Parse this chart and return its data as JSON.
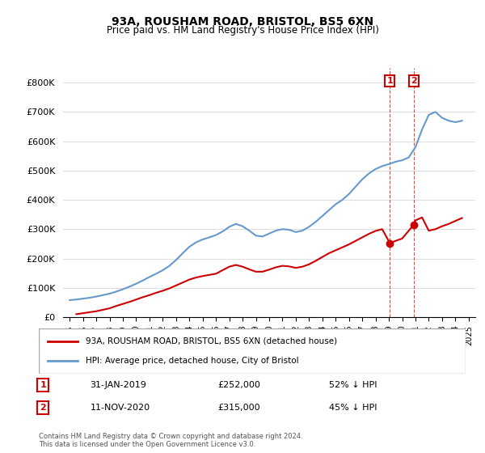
{
  "title1": "93A, ROUSHAM ROAD, BRISTOL, BS5 6XN",
  "title2": "Price paid vs. HM Land Registry's House Price Index (HPI)",
  "legend_line1": "93A, ROUSHAM ROAD, BRISTOL, BS5 6XN (detached house)",
  "legend_line2": "HPI: Average price, detached house, City of Bristol",
  "annotation1_label": "1",
  "annotation1_date": "31-JAN-2019",
  "annotation1_price": "£252,000",
  "annotation1_hpi": "52% ↓ HPI",
  "annotation1_year": 2019.08,
  "annotation1_value": 252000,
  "annotation2_label": "2",
  "annotation2_date": "11-NOV-2020",
  "annotation2_price": "£315,000",
  "annotation2_hpi": "45% ↓ HPI",
  "annotation2_year": 2020.87,
  "annotation2_value": 315000,
  "footnote": "Contains HM Land Registry data © Crown copyright and database right 2024.\nThis data is licensed under the Open Government Licence v3.0.",
  "ylabel_color": "#222222",
  "hpi_color": "#6699cc",
  "price_color": "#cc0000",
  "vline_color": "#cc0000",
  "annot_box_color": "#cc0000",
  "ylim_max": 850000,
  "ylim_min": 0,
  "hpi_years": [
    1995,
    1995.5,
    1996,
    1996.5,
    1997,
    1997.5,
    1998,
    1998.5,
    1999,
    1999.5,
    2000,
    2000.5,
    2001,
    2001.5,
    2002,
    2002.5,
    2003,
    2003.5,
    2004,
    2004.5,
    2005,
    2005.5,
    2006,
    2006.5,
    2007,
    2007.5,
    2008,
    2008.5,
    2009,
    2009.5,
    2010,
    2010.5,
    2011,
    2011.5,
    2012,
    2012.5,
    2013,
    2013.5,
    2014,
    2014.5,
    2015,
    2015.5,
    2016,
    2016.5,
    2017,
    2017.5,
    2018,
    2018.5,
    2019,
    2019.5,
    2020,
    2020.5,
    2021,
    2021.5,
    2022,
    2022.5,
    2023,
    2023.5,
    2024,
    2024.5
  ],
  "hpi_values": [
    58000,
    60000,
    63000,
    66000,
    70000,
    75000,
    80000,
    87000,
    95000,
    104000,
    114000,
    125000,
    137000,
    148000,
    160000,
    175000,
    195000,
    218000,
    240000,
    255000,
    265000,
    272000,
    280000,
    292000,
    308000,
    318000,
    310000,
    295000,
    278000,
    275000,
    285000,
    295000,
    300000,
    298000,
    290000,
    295000,
    308000,
    325000,
    345000,
    365000,
    385000,
    400000,
    420000,
    445000,
    470000,
    490000,
    505000,
    515000,
    522000,
    530000,
    535000,
    545000,
    580000,
    640000,
    690000,
    700000,
    680000,
    670000,
    665000,
    670000
  ],
  "price_years": [
    1995.5,
    1997,
    1997.5,
    1998,
    1998.5,
    1999,
    1999.5,
    2000,
    2000.5,
    2001,
    2001.5,
    2002,
    2002.5,
    2003,
    2003.5,
    2004,
    2004.5,
    2005,
    2006,
    2006.5,
    2007,
    2007.5,
    2008,
    2008.5,
    2009,
    2009.5,
    2010,
    2010.5,
    2011,
    2011.5,
    2012,
    2012.5,
    2013,
    2013.5,
    2014,
    2014.5,
    2015,
    2015.5,
    2016,
    2016.5,
    2017,
    2017.5,
    2018,
    2018.5,
    2019.08,
    2019.5,
    2020,
    2020.87,
    2021,
    2021.5,
    2022,
    2022.5,
    2023,
    2023.5,
    2024,
    2024.5
  ],
  "price_values": [
    10000,
    20000,
    25000,
    30000,
    38000,
    45000,
    52000,
    60000,
    68000,
    75000,
    83000,
    90000,
    98000,
    108000,
    118000,
    128000,
    135000,
    140000,
    148000,
    160000,
    172000,
    178000,
    172000,
    163000,
    155000,
    155000,
    162000,
    170000,
    175000,
    173000,
    168000,
    172000,
    180000,
    192000,
    205000,
    218000,
    228000,
    238000,
    248000,
    260000,
    272000,
    284000,
    294000,
    300000,
    252000,
    260000,
    268000,
    315000,
    330000,
    340000,
    295000,
    300000,
    310000,
    318000,
    328000,
    338000
  ]
}
